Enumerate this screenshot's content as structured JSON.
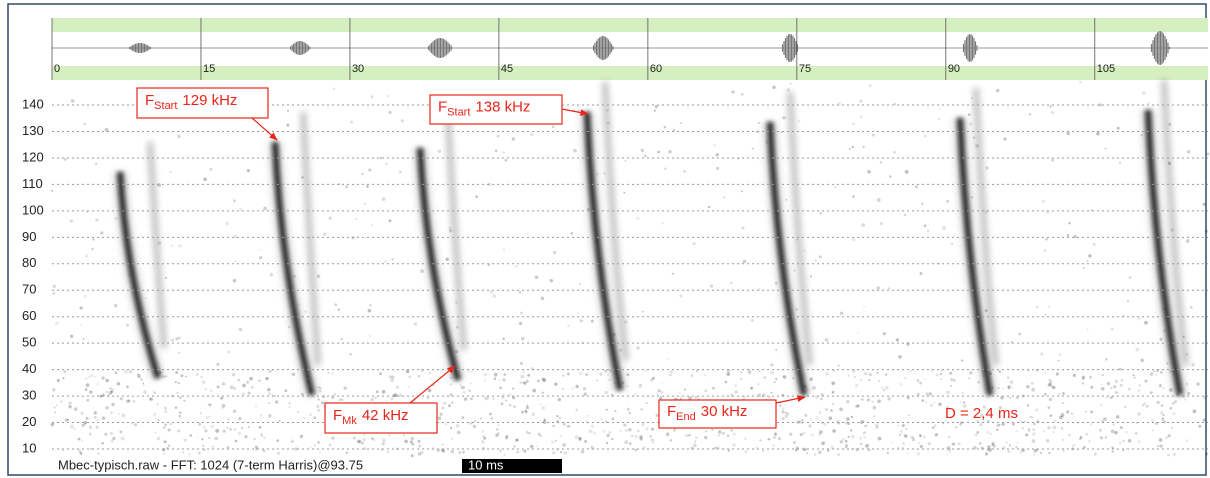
{
  "chart_data": {
    "type": "spectrogram",
    "xlim": [
      0,
      116.4
    ],
    "xticks": [
      0,
      15,
      30,
      45,
      60,
      75,
      90,
      105
    ],
    "ylim": [
      6.6,
      148.7
    ],
    "yticks": [
      10,
      20,
      30,
      40,
      50,
      60,
      70,
      80,
      90,
      100,
      110,
      120,
      130,
      140
    ],
    "grid": true,
    "annotations": [
      {
        "symbol": "F",
        "sub": "Start",
        "value": "129 kHz"
      },
      {
        "symbol": "F",
        "sub": "Start",
        "value": "138 kHz"
      },
      {
        "symbol": "F",
        "sub": "Mk",
        "value": "42 kHz"
      },
      {
        "symbol": "F",
        "sub": "End",
        "value": "30 kHz"
      },
      {
        "text": "D = 2,4 ms"
      }
    ],
    "footer": "Mbec-typisch.raw - FFT: 1024 (7-term Harris)@93.75",
    "scale_bar": "10 ms"
  }
}
